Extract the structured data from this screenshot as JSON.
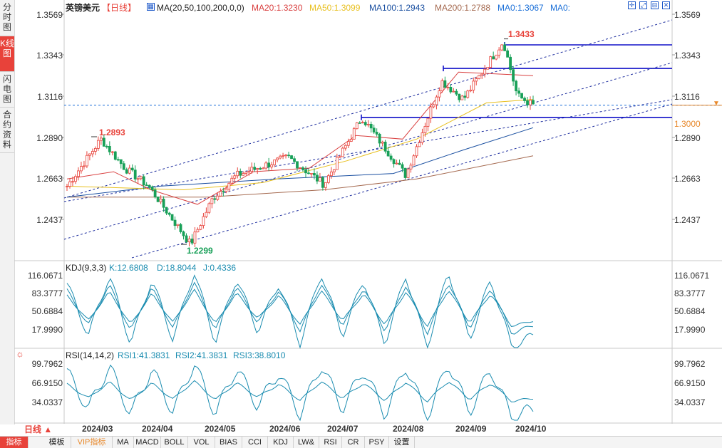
{
  "left_tabs": [
    "分时图",
    "K线图",
    "闪电图",
    "合约资料"
  ],
  "header": {
    "symbol": "英镑美元",
    "period": "【日线】",
    "ma_label": "MA(20,50,100,200,0,0)",
    "ma20": "MA20:1.3230",
    "ma50": "MA50:1.3099",
    "ma100": "MA100:1.2943",
    "ma200": "MA200:1.2788",
    "ma0a": "MA0:1.3067",
    "ma0b": "MA0:"
  },
  "colors": {
    "up": "#e8423a",
    "down": "#18a058",
    "ma20": "#d94040",
    "ma50": "#e8c020",
    "ma100": "#1a4fa0",
    "ma200": "#a56a50",
    "ma0": "#1a6fd8",
    "hline": "#1010c8",
    "channel": "#2030a0"
  },
  "price_axis": [
    "1.3569",
    "1.3343",
    "1.3116",
    "1.2890",
    "1.2663",
    "1.2437"
  ],
  "price_marker": "1.3000",
  "annotations": {
    "high": "1.3433",
    "mid_high": "1.2893",
    "low": "1.2299"
  },
  "kdj": {
    "title": "KDJ(9,3,3)",
    "k": "K:12.6808",
    "d": "D:18.8044",
    "j": "J:0.4336",
    "axis": [
      "116.0671",
      "83.3777",
      "50.6884",
      "17.9990"
    ]
  },
  "rsi": {
    "title": "RSI(14,14,2)",
    "r1": "RSI1:41.3831",
    "r2": "RSI2:41.3831",
    "r3": "RSI3:38.8010",
    "axis": [
      "99.7962",
      "66.9150",
      "34.0337"
    ]
  },
  "dates": [
    "2024/03",
    "2024/04",
    "2024/05",
    "2024/06",
    "2024/07",
    "2024/08",
    "2024/09",
    "2024/10"
  ],
  "period_selector": "日线 ▲",
  "bottom_tabs": [
    "指标",
    "模板",
    "VIP指标",
    "MA",
    "MACD",
    "BOLL",
    "VOL",
    "BIAS",
    "CCI",
    "KDJ",
    "LW&",
    "RSI",
    "CR",
    "PSY",
    "设置"
  ],
  "chart_data": {
    "type": "candlestick",
    "price_range": [
      1.22,
      1.36
    ],
    "keypoints": [
      {
        "date": "2024/02/20",
        "price": 1.262
      },
      {
        "date": "2024/03/08",
        "price": 1.288
      },
      {
        "date": "2024/03/20",
        "price": 1.272
      },
      {
        "date": "2024/04/01",
        "price": 1.262
      },
      {
        "date": "2024/04/22",
        "price": 1.23
      },
      {
        "date": "2024/05/03",
        "price": 1.255
      },
      {
        "date": "2024/05/15",
        "price": 1.268
      },
      {
        "date": "2024/06/10",
        "price": 1.278
      },
      {
        "date": "2024/06/28",
        "price": 1.263
      },
      {
        "date": "2024/07/17",
        "price": 1.3
      },
      {
        "date": "2024/08/08",
        "price": 1.268
      },
      {
        "date": "2024/08/26",
        "price": 1.32
      },
      {
        "date": "2024/09/06",
        "price": 1.31
      },
      {
        "date": "2024/09/26",
        "price": 1.342
      },
      {
        "date": "2024/10/03",
        "price": 1.312
      },
      {
        "date": "2024/10/11",
        "price": 1.3067
      }
    ],
    "horizontal_levels": [
      1.34,
      1.327,
      1.3
    ],
    "ma20": [
      [
        0,
        1.266
      ],
      [
        0.1,
        1.27
      ],
      [
        0.18,
        1.26
      ],
      [
        0.28,
        1.252
      ],
      [
        0.4,
        1.27
      ],
      [
        0.52,
        1.272
      ],
      [
        0.62,
        1.29
      ],
      [
        0.72,
        1.288
      ],
      [
        0.84,
        1.325
      ],
      [
        1.0,
        1.323
      ]
    ],
    "ma50": [
      [
        0,
        1.262
      ],
      [
        0.25,
        1.26
      ],
      [
        0.42,
        1.264
      ],
      [
        0.6,
        1.276
      ],
      [
        0.75,
        1.288
      ],
      [
        0.9,
        1.308
      ],
      [
        1.0,
        1.3099
      ]
    ],
    "ma100": [
      [
        0,
        1.256
      ],
      [
        0.2,
        1.262
      ],
      [
        0.45,
        1.266
      ],
      [
        0.7,
        1.269
      ],
      [
        0.85,
        1.282
      ],
      [
        1.0,
        1.2943
      ]
    ],
    "ma200": [
      [
        0,
        1.256
      ],
      [
        0.3,
        1.256
      ],
      [
        0.55,
        1.26
      ],
      [
        0.75,
        1.266
      ],
      [
        1.0,
        1.2788
      ]
    ]
  }
}
